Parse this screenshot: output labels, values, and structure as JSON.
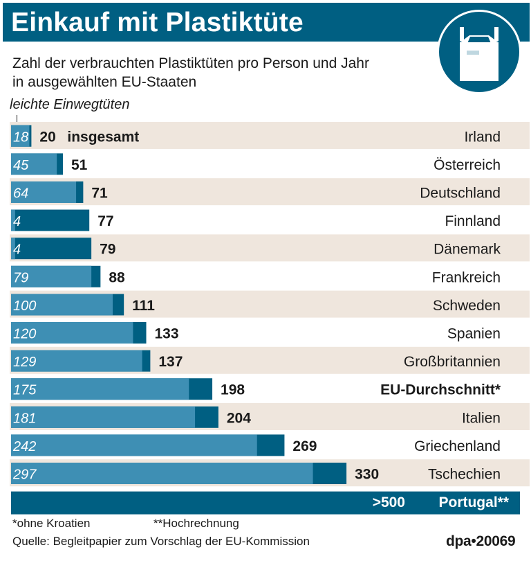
{
  "title": "Einkauf mit Plastiktüte",
  "subtitle_lines": [
    "Zahl der verbrauchten Plastiktüten pro Person und Jahr",
    "in ausgewählten EU-Staaten"
  ],
  "legend": {
    "light_label": "leichte Einwegtüten",
    "total_label": "insgesamt"
  },
  "icon": "plastic-bag-icon",
  "colors": {
    "header": "#005f82",
    "total_bar": "#005f82",
    "light_bar": "#3e8fb4",
    "stripe": "#efe6dd"
  },
  "chart_data": {
    "type": "bar",
    "orientation": "horizontal",
    "categories": [
      "Irland",
      "Österreich",
      "Deutschland",
      "Finnland",
      "Dänemark",
      "Frankreich",
      "Schweden",
      "Spanien",
      "Großbritannien",
      "EU-Durchschnitt*",
      "Italien",
      "Griechenland",
      "Tschechien",
      "Portugal**"
    ],
    "series": [
      {
        "name": "leichte Einwegtüten",
        "values": [
          18,
          45,
          64,
          4,
          4,
          79,
          100,
          120,
          129,
          175,
          181,
          242,
          297,
          null
        ]
      },
      {
        "name": "insgesamt",
        "values": [
          20,
          51,
          71,
          77,
          79,
          88,
          111,
          133,
          137,
          198,
          204,
          269,
          330,
          null
        ]
      }
    ],
    "overflow_label": ">500",
    "highlight": "EU-Durchschnitt*",
    "xlim": [
      0,
      330
    ]
  },
  "footnotes": {
    "note1": "*ohne Kroatien",
    "note2": "**Hochrechnung",
    "source": "Quelle: Begleitpapier zum Vorschlag der EU-Kommission",
    "credit": "dpa•20069"
  }
}
